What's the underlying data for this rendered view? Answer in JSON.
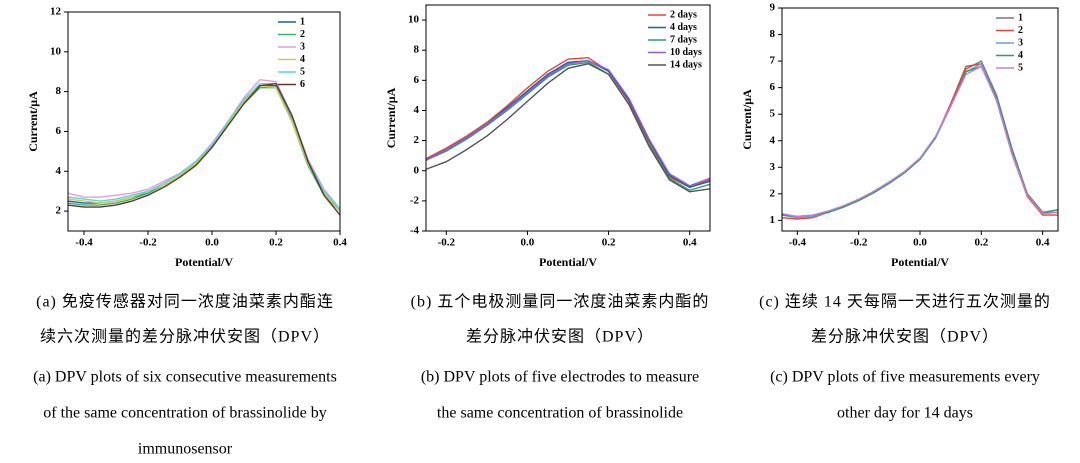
{
  "chart_data": [
    {
      "type": "line",
      "xlabel": "Potential/V",
      "ylabel": "Current/μA",
      "xlim": [
        -0.45,
        0.4
      ],
      "ylim": [
        1,
        12
      ],
      "xticks": [
        -0.4,
        -0.2,
        {
          "value": 0,
          "label": "0.0"
        },
        0.2,
        0.4
      ],
      "yticks": [
        2,
        4,
        6,
        8,
        10,
        12
      ],
      "legend": "upper right",
      "caption_zh": [
        "(a) 免疫传感器对同一浓度油菜素内酯连",
        "续六次测量的差分脉冲伏安图（DPV）"
      ],
      "caption_en": [
        "(a) DPV plots of six consecutive measurements",
        "of the same concentration of brassinolide by",
        "immunosensor"
      ],
      "x": [
        -0.45,
        -0.4,
        -0.35,
        -0.3,
        -0.25,
        -0.2,
        -0.15,
        -0.1,
        -0.05,
        0,
        0.05,
        0.1,
        0.15,
        0.2,
        0.25,
        0.3,
        0.35,
        0.4
      ],
      "series": [
        {
          "name": "1",
          "color": "#1f5fa8",
          "values": [
            2.5,
            2.4,
            2.4,
            2.5,
            2.7,
            2.9,
            3.3,
            3.8,
            4.4,
            5.3,
            6.4,
            7.5,
            8.3,
            8.3,
            6.6,
            4.4,
            2.9,
            2.0
          ]
        },
        {
          "name": "2",
          "color": "#3cb371",
          "values": [
            2.4,
            2.3,
            2.3,
            2.4,
            2.6,
            2.9,
            3.3,
            3.8,
            4.4,
            5.3,
            6.4,
            7.4,
            8.2,
            8.2,
            6.5,
            4.3,
            2.8,
            2.0
          ]
        },
        {
          "name": "3",
          "color": "#d9a0e6",
          "values": [
            2.9,
            2.7,
            2.7,
            2.8,
            2.9,
            3.1,
            3.5,
            3.9,
            4.5,
            5.4,
            6.5,
            7.7,
            8.6,
            8.5,
            6.8,
            4.6,
            3.1,
            2.1
          ]
        },
        {
          "name": "4",
          "color": "#d4c94a",
          "values": [
            2.6,
            2.5,
            2.4,
            2.5,
            2.7,
            3.0,
            3.3,
            3.8,
            4.4,
            5.3,
            6.4,
            7.5,
            8.3,
            8.2,
            6.5,
            4.4,
            2.9,
            2.0
          ]
        },
        {
          "name": "5",
          "color": "#5bd3e0",
          "values": [
            2.7,
            2.6,
            2.5,
            2.6,
            2.8,
            3.0,
            3.4,
            3.9,
            4.5,
            5.3,
            6.5,
            7.6,
            8.4,
            8.4,
            6.7,
            4.5,
            3.0,
            2.1
          ]
        },
        {
          "name": "6",
          "color": "#5a3a2a",
          "values": [
            2.3,
            2.2,
            2.2,
            2.3,
            2.5,
            2.8,
            3.2,
            3.7,
            4.3,
            5.2,
            6.3,
            7.4,
            8.3,
            8.4,
            6.8,
            4.5,
            2.8,
            1.8
          ]
        }
      ]
    },
    {
      "type": "line",
      "xlabel": "Potential/V",
      "ylabel": "Current/μA",
      "xlim": [
        -0.25,
        0.45
      ],
      "ylim": [
        -4,
        11
      ],
      "xticks": [
        -0.2,
        {
          "value": 0,
          "label": "0.0"
        },
        0.2,
        0.4
      ],
      "yticks": [
        -4,
        -2,
        0,
        2,
        4,
        6,
        8,
        10
      ],
      "legend": "upper right",
      "caption_zh": [
        "(b) 五个电极测量同一浓度油菜素内酯的",
        "差分脉冲伏安图（DPV）"
      ],
      "caption_en": [
        "(b) DPV plots of five electrodes to measure",
        "the same concentration of brassinolide"
      ],
      "x": [
        -0.25,
        -0.2,
        -0.15,
        -0.1,
        -0.05,
        0,
        0.05,
        0.1,
        0.15,
        0.2,
        0.25,
        0.3,
        0.35,
        0.4,
        0.45
      ],
      "series": [
        {
          "name": "2 days",
          "color": "#e8403a",
          "values": [
            0.8,
            1.5,
            2.3,
            3.2,
            4.3,
            5.5,
            6.6,
            7.4,
            7.5,
            6.6,
            4.6,
            1.8,
            -0.4,
            -1.1,
            -0.6
          ]
        },
        {
          "name": "4 days",
          "color": "#1f5fa8",
          "values": [
            0.7,
            1.4,
            2.2,
            3.1,
            4.2,
            5.3,
            6.4,
            7.2,
            7.3,
            6.6,
            4.7,
            2.0,
            -0.3,
            -1.1,
            -0.7
          ]
        },
        {
          "name": "7 days",
          "color": "#2e9e6e",
          "values": [
            0.7,
            1.3,
            2.1,
            3.0,
            4.0,
            5.1,
            6.2,
            7.0,
            7.2,
            6.4,
            4.4,
            1.7,
            -0.5,
            -1.3,
            -0.9
          ]
        },
        {
          "name": "10 days",
          "color": "#8a5fd0",
          "values": [
            0.7,
            1.4,
            2.2,
            3.1,
            4.1,
            5.2,
            6.3,
            7.1,
            7.3,
            6.7,
            4.8,
            2.1,
            -0.2,
            -1.0,
            -0.5
          ]
        },
        {
          "name": "14 days",
          "color": "#555555",
          "values": [
            0.1,
            0.6,
            1.4,
            2.3,
            3.4,
            4.6,
            5.8,
            6.8,
            7.1,
            6.4,
            4.4,
            1.6,
            -0.6,
            -1.4,
            -1.2
          ]
        }
      ]
    },
    {
      "type": "line",
      "xlabel": "Potential/V",
      "ylabel": "Current/μA",
      "xlim": [
        -0.45,
        0.45
      ],
      "ylim": [
        0.6,
        9
      ],
      "xticks": [
        -0.4,
        -0.2,
        {
          "value": 0,
          "label": "0.0"
        },
        0.2,
        0.4
      ],
      "yticks": [
        1,
        2,
        3,
        4,
        5,
        6,
        7,
        8,
        9
      ],
      "legend": "upper right",
      "caption_zh": [
        "(c) 连续 14 天每隔一天进行五次测量的",
        "差分脉冲伏安图（DPV）"
      ],
      "caption_en": [
        "(c) DPV plots of five measurements every",
        "other day for 14 days"
      ],
      "x": [
        -0.45,
        -0.4,
        -0.35,
        -0.3,
        -0.25,
        -0.2,
        -0.15,
        -0.1,
        -0.05,
        0,
        0.05,
        0.1,
        0.15,
        0.2,
        0.25,
        0.3,
        0.35,
        0.4,
        0.45
      ],
      "series": [
        {
          "name": "1",
          "color": "#777777",
          "values": [
            1.2,
            1.1,
            1.15,
            1.3,
            1.5,
            1.75,
            2.05,
            2.4,
            2.8,
            3.3,
            4.1,
            5.3,
            6.7,
            7.0,
            5.7,
            3.7,
            2.0,
            1.3,
            1.3
          ]
        },
        {
          "name": "2",
          "color": "#e8403a",
          "values": [
            1.1,
            1.05,
            1.1,
            1.3,
            1.5,
            1.75,
            2.05,
            2.4,
            2.8,
            3.3,
            4.1,
            5.4,
            6.8,
            6.9,
            5.5,
            3.5,
            1.9,
            1.2,
            1.2
          ]
        },
        {
          "name": "3",
          "color": "#6a9ed8",
          "values": [
            1.2,
            1.1,
            1.15,
            1.3,
            1.5,
            1.75,
            2.1,
            2.45,
            2.8,
            3.3,
            4.1,
            5.3,
            6.6,
            6.9,
            5.6,
            3.6,
            2.0,
            1.3,
            1.4
          ]
        },
        {
          "name": "4",
          "color": "#2e9e6e",
          "values": [
            1.2,
            1.15,
            1.2,
            1.3,
            1.5,
            1.75,
            2.05,
            2.4,
            2.8,
            3.3,
            4.1,
            5.3,
            6.6,
            6.8,
            5.6,
            3.6,
            2.0,
            1.3,
            1.4
          ]
        },
        {
          "name": "5",
          "color": "#c77ddc",
          "values": [
            1.25,
            1.15,
            1.2,
            1.35,
            1.55,
            1.8,
            2.1,
            2.45,
            2.85,
            3.35,
            4.15,
            5.3,
            6.5,
            6.8,
            5.5,
            3.5,
            1.95,
            1.25,
            1.3
          ]
        }
      ]
    }
  ]
}
